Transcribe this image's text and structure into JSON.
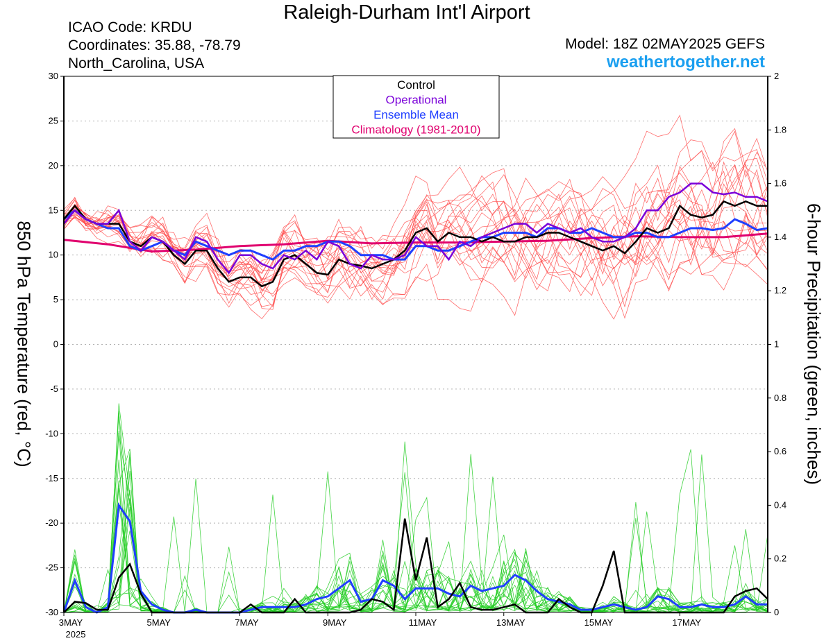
{
  "header": {
    "title": "Raleigh-Durham Int'l Airport",
    "icao": "ICAO Code: KRDU",
    "coordinates": "Coordinates: 35.88, -78.79",
    "location": "North_Carolina, USA",
    "model": "Model: 18Z 02MAY2025 GEFS",
    "website": "weathertogether.net"
  },
  "colors": {
    "control": "#000000",
    "operational": "#7a00d9",
    "ensemble_mean": "#1f3fff",
    "climatology": "#e0006e",
    "temp_members": "#ff4a4a",
    "precip_members": "#22cc22",
    "website": "#1a9ff0"
  },
  "chart_data": {
    "type": "line",
    "title": "Raleigh-Durham Int'l Airport",
    "xlabel": "",
    "ylabel_left": "850 hPa Temperature (red, °C)",
    "ylabel_right": "6-hour Precipitation (green, inches)",
    "x_unit": "days since 3MAY 00Z",
    "xlim": [
      0,
      16
    ],
    "ylim_left": [
      -30,
      30
    ],
    "ylim_right": [
      0,
      2
    ],
    "left_ticks": [
      30,
      25,
      20,
      15,
      10,
      5,
      0,
      -5,
      -10,
      -15,
      -20,
      -25,
      -30
    ],
    "right_ticks": [
      2,
      1.8,
      1.6,
      1.4,
      1.2,
      1,
      0.8,
      0.6,
      0.4,
      0.2,
      0
    ],
    "x_ticks": [
      {
        "x": 0,
        "label": "3MAY"
      },
      {
        "x": 2,
        "label": "5MAY"
      },
      {
        "x": 4,
        "label": "7MAY"
      },
      {
        "x": 6,
        "label": "9MAY"
      },
      {
        "x": 8,
        "label": "11MAY"
      },
      {
        "x": 10,
        "label": "13MAY"
      },
      {
        "x": 12,
        "label": "15MAY"
      },
      {
        "x": 14,
        "label": "17MAY"
      }
    ],
    "x_year_label": "2025",
    "legend": [
      "Control",
      "Operational",
      "Ensemble Mean",
      "Climatology (1981-2010)"
    ],
    "legend_position": "top-center",
    "grid": true,
    "series_temp": [
      {
        "name": "Control",
        "x": [
          0,
          0.25,
          0.5,
          0.75,
          1,
          1.25,
          1.5,
          1.75,
          2,
          2.25,
          2.5,
          2.75,
          3,
          3.25,
          3.5,
          3.75,
          4,
          4.25,
          4.5,
          4.75,
          5,
          5.25,
          5.5,
          5.75,
          6,
          6.25,
          6.5,
          6.75,
          7,
          7.25,
          7.5,
          7.75,
          8,
          8.25,
          8.5,
          8.75,
          9,
          9.25,
          9.5,
          9.75,
          10,
          10.25,
          10.5,
          10.75,
          11,
          11.25,
          11.5,
          11.75,
          12,
          12.25,
          12.5,
          12.75,
          13,
          13.25,
          13.5,
          13.75,
          14,
          14.25,
          14.5,
          14.75,
          15,
          15.25,
          15.5,
          15.75,
          16
        ],
        "y": [
          14,
          15.5,
          14,
          13.5,
          13.5,
          13.5,
          11.5,
          11,
          12,
          11.5,
          10,
          9,
          10.5,
          10.5,
          8.5,
          7,
          7.5,
          7.5,
          6.5,
          7,
          9.5,
          10,
          9,
          8,
          7.8,
          9.5,
          9,
          8.8,
          8.5,
          9,
          9.5,
          10.5,
          12.5,
          13,
          11.5,
          12.5,
          12,
          12,
          11.5,
          12,
          11.5,
          11.5,
          12,
          12,
          12.5,
          12.5,
          12,
          11.5,
          11,
          10.5,
          11,
          10.2,
          11.5,
          13,
          12.5,
          13,
          15.5,
          14.5,
          14.2,
          14.5,
          16,
          15.5,
          16,
          15.5,
          15.5
        ]
      },
      {
        "name": "Operational",
        "x": [
          0,
          0.25,
          0.5,
          0.75,
          1,
          1.25,
          1.5,
          1.75,
          2,
          2.25,
          2.5,
          2.75,
          3,
          3.25,
          3.5,
          3.75,
          4,
          4.25,
          4.5,
          4.75,
          5,
          5.25,
          5.5,
          5.75,
          6,
          6.25,
          6.5,
          6.75,
          7,
          7.25,
          7.5,
          7.75,
          8,
          8.25,
          8.5,
          8.75,
          9,
          9.25,
          9.5,
          9.75,
          10,
          10.25,
          10.5,
          10.75,
          11,
          11.25,
          11.5,
          11.75,
          12,
          12.25,
          12.5,
          12.75,
          13,
          13.25,
          13.5,
          13.75,
          14,
          14.25,
          14.5,
          14.75,
          15,
          15.25,
          15.5,
          15.75,
          16
        ],
        "y": [
          13.5,
          15,
          14,
          13.5,
          13.5,
          15,
          11.5,
          10.5,
          12,
          11.5,
          10.5,
          9.5,
          12,
          11.5,
          9.5,
          8,
          10,
          10,
          9,
          8.5,
          10,
          9.5,
          10.5,
          9.5,
          11.5,
          11,
          9,
          8.5,
          10,
          9.5,
          9.5,
          10,
          12,
          11,
          11,
          9.5,
          11.5,
          11,
          12,
          12.5,
          13,
          13.5,
          13.5,
          12.5,
          13.5,
          13,
          12.5,
          13,
          12,
          11.5,
          11.5,
          12,
          13,
          15,
          15,
          16.5,
          17,
          18,
          18,
          17,
          16.8,
          17,
          16.5,
          16.5,
          16
        ]
      },
      {
        "name": "Ensemble Mean",
        "x": [
          0,
          0.25,
          0.5,
          0.75,
          1,
          1.25,
          1.5,
          1.75,
          2,
          2.25,
          2.5,
          2.75,
          3,
          3.25,
          3.5,
          3.75,
          4,
          4.25,
          4.5,
          4.75,
          5,
          5.25,
          5.5,
          5.75,
          6,
          6.25,
          6.5,
          6.75,
          7,
          7.25,
          7.5,
          7.75,
          8,
          8.25,
          8.5,
          8.75,
          9,
          9.25,
          9.5,
          9.75,
          10,
          10.25,
          10.5,
          10.75,
          11,
          11.25,
          11.5,
          11.75,
          12,
          12.25,
          12.5,
          12.75,
          13,
          13.25,
          13.5,
          13.75,
          14,
          14.25,
          14.5,
          14.75,
          15,
          15.25,
          15.5,
          15.75,
          16
        ],
        "y": [
          14,
          15,
          14,
          13.5,
          13,
          13,
          11,
          10.5,
          11,
          11.5,
          10.5,
          10,
          11.5,
          11,
          10.5,
          10,
          10.5,
          10.5,
          10,
          9.5,
          10.5,
          10.5,
          11,
          11,
          11.5,
          11.5,
          11,
          10,
          10,
          10,
          9.5,
          9.5,
          11,
          11,
          10.5,
          10.5,
          11,
          11.5,
          12,
          12,
          12.5,
          12.5,
          12.5,
          12,
          13,
          13,
          12.5,
          12.5,
          13,
          12.5,
          12,
          12,
          12.5,
          12.5,
          12,
          12,
          12.5,
          13,
          13,
          12.8,
          13,
          14,
          13.5,
          12.8,
          13
        ]
      },
      {
        "name": "Climatology (1981-2010)",
        "x": [
          0,
          1,
          2,
          3,
          4,
          5,
          6,
          7,
          8,
          9,
          10,
          11,
          12,
          13,
          14,
          15,
          16
        ],
        "y": [
          11.7,
          11.2,
          10.4,
          10.6,
          11.0,
          11.2,
          11.6,
          11.3,
          11.4,
          11.4,
          11.5,
          11.6,
          11.9,
          12.1,
          12.0,
          12.0,
          12.4
        ]
      }
    ],
    "series_precip": [
      {
        "name": "Control",
        "x": [
          0,
          0.25,
          0.5,
          0.75,
          1,
          1.25,
          1.5,
          1.75,
          2,
          2.25,
          2.5,
          2.75,
          3,
          3.25,
          3.5,
          3.75,
          4,
          4.25,
          4.5,
          4.75,
          5,
          5.25,
          5.5,
          5.75,
          6,
          6.25,
          6.5,
          6.75,
          7,
          7.25,
          7.5,
          7.75,
          8,
          8.25,
          8.5,
          8.75,
          9,
          9.25,
          9.5,
          9.75,
          10,
          10.25,
          10.5,
          10.75,
          11,
          11.25,
          11.5,
          11.75,
          12,
          12.25,
          12.5,
          12.75,
          13,
          13.25,
          13.5,
          13.75,
          14,
          14.25,
          14.5,
          14.75,
          15,
          15.25,
          15.5,
          15.75,
          16
        ],
        "y": [
          0,
          0.04,
          0.035,
          0.01,
          0.01,
          0.13,
          0.18,
          0.07,
          0,
          0,
          0,
          0,
          0,
          0,
          0,
          0,
          0,
          0.03,
          0,
          0,
          0,
          0.05,
          0,
          0,
          0,
          0,
          0,
          0.01,
          0.05,
          0.04,
          0.01,
          0.35,
          0.12,
          0.28,
          0.02,
          0.05,
          0.11,
          0.02,
          0.01,
          0.01,
          0.02,
          0.03,
          0,
          0,
          0,
          0.05,
          0.02,
          0,
          0,
          0.1,
          0.23,
          0,
          0,
          0,
          0,
          0,
          0,
          0,
          0,
          0,
          0,
          0.06,
          0.08,
          0.09,
          0.05
        ]
      },
      {
        "name": "Ensemble Mean",
        "x": [
          0,
          0.25,
          0.5,
          0.75,
          1,
          1.25,
          1.5,
          1.75,
          2,
          2.25,
          2.5,
          2.75,
          3,
          3.25,
          3.5,
          3.75,
          4,
          4.25,
          4.5,
          4.75,
          5,
          5.25,
          5.5,
          5.75,
          6,
          6.25,
          6.5,
          6.75,
          7,
          7.25,
          7.5,
          7.75,
          8,
          8.25,
          8.5,
          8.75,
          9,
          9.25,
          9.5,
          9.75,
          10,
          10.25,
          10.5,
          10.75,
          11,
          11.25,
          11.5,
          11.75,
          12,
          12.25,
          12.5,
          12.75,
          13,
          13.25,
          13.5,
          13.75,
          14,
          14.25,
          14.5,
          14.75,
          15,
          15.25,
          15.5,
          15.75,
          16
        ],
        "y": [
          0,
          0.12,
          0.02,
          0,
          0.02,
          0.4,
          0.34,
          0.08,
          0.03,
          0.01,
          0,
          0,
          0.01,
          0,
          0,
          0,
          0,
          0.01,
          0.02,
          0.02,
          0.02,
          0.02,
          0.03,
          0.05,
          0.06,
          0.09,
          0.12,
          0.04,
          0.05,
          0.12,
          0.1,
          0.05,
          0.09,
          0.09,
          0.09,
          0.07,
          0.06,
          0.1,
          0.08,
          0.09,
          0.1,
          0.14,
          0.12,
          0.08,
          0.05,
          0.04,
          0.03,
          0.01,
          0.01,
          0.02,
          0.03,
          0.02,
          0.01,
          0.02,
          0.06,
          0.05,
          0.02,
          0.02,
          0.03,
          0.02,
          0.02,
          0.03,
          0.06,
          0.03,
          0.03
        ]
      }
    ]
  }
}
